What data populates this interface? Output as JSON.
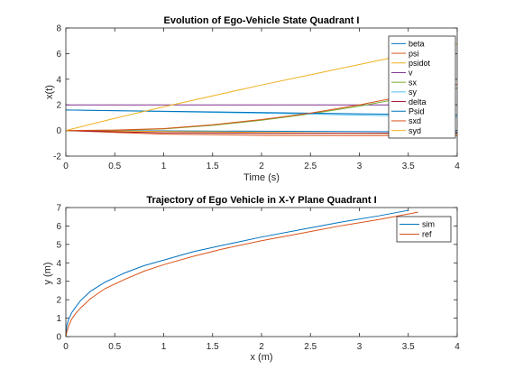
{
  "chart_data": [
    {
      "type": "line",
      "title": "Evolution of Ego-Vehicle State Quadrant I",
      "xlabel": "Time (s)",
      "ylabel": "x(t)",
      "xlim": [
        0,
        4
      ],
      "ylim": [
        -2,
        8
      ],
      "xticks": [
        "0",
        "0.5",
        "1",
        "1.5",
        "2",
        "2.5",
        "3",
        "3.5",
        "4"
      ],
      "yticks": [
        "-2",
        "0",
        "2",
        "4",
        "6",
        "8"
      ],
      "legend_position": "top-right",
      "series": [
        {
          "name": "beta",
          "color": "#0072BD",
          "x": [
            0,
            4
          ],
          "y": [
            0,
            -0.12
          ]
        },
        {
          "name": "psi",
          "color": "#D95319",
          "x": [
            0,
            0.5,
            1,
            2,
            3,
            4
          ],
          "y": [
            0,
            -0.15,
            -0.28,
            -0.38,
            -0.4,
            -0.4
          ]
        },
        {
          "name": "psidot",
          "color": "#EDB120",
          "x": [
            0,
            4
          ],
          "y": [
            0,
            -0.3
          ]
        },
        {
          "name": "v",
          "color": "#7E2F8E",
          "x": [
            0,
            4
          ],
          "y": [
            2,
            2
          ]
        },
        {
          "name": "sx",
          "color": "#77AC30",
          "x": [
            0,
            0.5,
            1,
            1.5,
            2,
            2.5,
            3,
            3.5,
            4
          ],
          "y": [
            0,
            0.02,
            0.12,
            0.4,
            0.8,
            1.3,
            1.9,
            2.6,
            3.3
          ]
        },
        {
          "name": "sy",
          "color": "#4DBEEE",
          "x": [
            0,
            1,
            2,
            3,
            4
          ],
          "y": [
            1.6,
            1.48,
            1.35,
            1.2,
            1.05
          ]
        },
        {
          "name": "delta",
          "color": "#A2142F",
          "x": [
            0,
            0.5,
            1,
            2,
            3,
            4
          ],
          "y": [
            0,
            -0.1,
            -0.18,
            -0.22,
            -0.22,
            -0.2
          ]
        },
        {
          "name": "Psid",
          "color": "#0072BD",
          "x": [
            0,
            4
          ],
          "y": [
            1.6,
            1.2
          ]
        },
        {
          "name": "sxd",
          "color": "#D95319",
          "x": [
            0,
            0.5,
            1,
            1.5,
            2,
            2.5,
            3,
            3.5,
            4
          ],
          "y": [
            0,
            0.03,
            0.15,
            0.45,
            0.85,
            1.35,
            2.0,
            2.75,
            3.6
          ]
        },
        {
          "name": "syd",
          "color": "#EDB120",
          "x": [
            0,
            0.5,
            1,
            1.5,
            2,
            2.5,
            3,
            3.5,
            4
          ],
          "y": [
            0,
            0.95,
            1.85,
            2.7,
            3.55,
            4.35,
            5.15,
            5.95,
            6.75
          ]
        }
      ]
    },
    {
      "type": "line",
      "title": "Trajectory of Ego Vehicle in X-Y Plane Quadrant I",
      "xlabel": "x (m)",
      "ylabel": "y (m)",
      "xlim": [
        0,
        4
      ],
      "ylim": [
        0,
        7
      ],
      "xticks": [
        "0",
        "0.5",
        "1",
        "1.5",
        "2",
        "2.5",
        "3",
        "3.5",
        "4"
      ],
      "yticks": [
        "0",
        "1",
        "2",
        "3",
        "4",
        "5",
        "6",
        "7"
      ],
      "legend_position": "top-right",
      "series": [
        {
          "name": "sim",
          "color": "#0072BD",
          "x": [
            0,
            0.01,
            0.03,
            0.06,
            0.1,
            0.15,
            0.25,
            0.4,
            0.6,
            0.8,
            1.0,
            1.3,
            1.6,
            2.0,
            2.4,
            2.8,
            3.2,
            3.5
          ],
          "y": [
            0,
            0.6,
            0.95,
            1.3,
            1.6,
            1.95,
            2.45,
            2.95,
            3.45,
            3.85,
            4.15,
            4.6,
            4.95,
            5.4,
            5.8,
            6.2,
            6.55,
            6.85
          ]
        },
        {
          "name": "ref",
          "color": "#D95319",
          "x": [
            0,
            0.01,
            0.03,
            0.06,
            0.1,
            0.15,
            0.25,
            0.4,
            0.6,
            0.8,
            1.0,
            1.3,
            1.6,
            2.0,
            2.4,
            2.8,
            3.2,
            3.6
          ],
          "y": [
            0,
            0.25,
            0.6,
            0.95,
            1.25,
            1.55,
            2.05,
            2.6,
            3.1,
            3.55,
            3.9,
            4.35,
            4.75,
            5.2,
            5.6,
            6.0,
            6.35,
            6.75
          ]
        }
      ]
    }
  ]
}
